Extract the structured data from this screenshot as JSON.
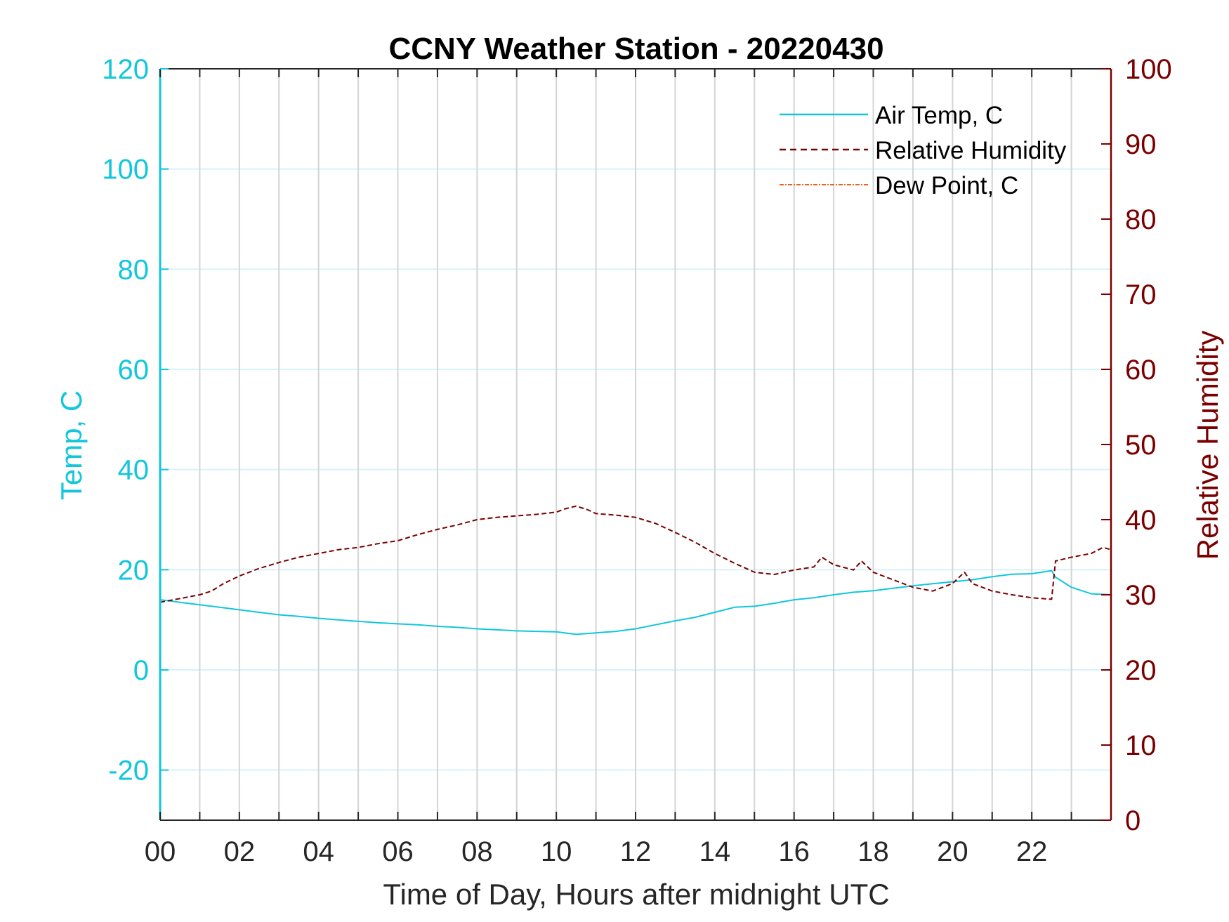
{
  "chart_data": {
    "type": "line",
    "title": "CCNY Weather Station - 20220430",
    "xlabel": "Time of Day, Hours after midnight UTC",
    "ylabel_left": "Temp, C",
    "ylabel_right": "Relative Humidity",
    "xlim": [
      0,
      24
    ],
    "ylim_left": [
      -30,
      120
    ],
    "ylim_right": [
      0,
      100
    ],
    "x_ticks": [
      0,
      2,
      4,
      6,
      8,
      10,
      12,
      14,
      16,
      18,
      20,
      22
    ],
    "x_tick_labels": [
      "00",
      "02",
      "04",
      "06",
      "08",
      "10",
      "12",
      "14",
      "16",
      "18",
      "20",
      "22"
    ],
    "y_left_ticks": [
      -20,
      0,
      20,
      40,
      60,
      80,
      100,
      120
    ],
    "y_left_tick_labels": [
      "-20",
      "0",
      "20",
      "40",
      "60",
      "80",
      "100",
      "120"
    ],
    "y_right_ticks": [
      0,
      10,
      20,
      30,
      40,
      50,
      60,
      70,
      80,
      90,
      100
    ],
    "y_right_tick_labels": [
      "0",
      "10",
      "20",
      "30",
      "40",
      "50",
      "60",
      "70",
      "80",
      "90",
      "100"
    ],
    "grid": true,
    "legend_position": "top-right",
    "colors": {
      "left_axis": "#12c6dc",
      "right_axis": "#7a0000",
      "dew_point": "#e8641c",
      "grid_vertical": "#d4d4d4",
      "grid_horizontal": "#d6f3f7"
    },
    "series": [
      {
        "name": "Air Temp, C",
        "axis": "left",
        "style": "solid",
        "color": "#12c6dc",
        "x": [
          0,
          0.5,
          1,
          1.5,
          2,
          2.5,
          3,
          3.5,
          4,
          4.5,
          5,
          5.5,
          6,
          6.5,
          7,
          7.5,
          8,
          8.5,
          9,
          9.5,
          10,
          10.5,
          11,
          11.5,
          12,
          12.5,
          13,
          13.5,
          14,
          14.5,
          15,
          15.5,
          16,
          16.5,
          17,
          17.5,
          18,
          18.5,
          19,
          19.5,
          20,
          20.5,
          21,
          21.5,
          22,
          22.5,
          22.6,
          23,
          23.5,
          24
        ],
        "values": [
          14,
          13.5,
          13,
          12.5,
          12,
          11.5,
          11,
          10.7,
          10.3,
          10,
          9.7,
          9.4,
          9.2,
          9,
          8.7,
          8.5,
          8.2,
          8,
          7.8,
          7.7,
          7.6,
          7.1,
          7.4,
          7.7,
          8.2,
          9,
          9.8,
          10.5,
          11.5,
          12.5,
          12.7,
          13.3,
          14,
          14.4,
          15,
          15.5,
          15.8,
          16.3,
          16.8,
          17.2,
          17.6,
          18,
          18.6,
          19.1,
          19.2,
          19.8,
          18.5,
          16.5,
          15.2,
          15
        ]
      },
      {
        "name": "Relative Humidity",
        "axis": "right",
        "style": "dashed",
        "color": "#7a0000",
        "x": [
          0,
          0.5,
          1,
          1.3,
          1.6,
          2,
          2.5,
          3,
          3.5,
          4,
          4.5,
          5,
          5.5,
          6,
          6.5,
          7,
          7.5,
          8,
          8.5,
          9,
          9.5,
          10,
          10.2,
          10.5,
          10.8,
          11,
          11.5,
          12,
          12.5,
          13,
          13.5,
          14,
          14.5,
          15,
          15.5,
          16,
          16.5,
          16.7,
          17,
          17.5,
          17.7,
          18,
          18.5,
          19,
          19.5,
          20,
          20.3,
          20.5,
          21,
          21.5,
          22,
          22.5,
          22.6,
          23,
          23.5,
          23.8,
          24
        ],
        "values": [
          29,
          29.5,
          30,
          30.5,
          31.5,
          32.5,
          33.5,
          34.3,
          35,
          35.5,
          36,
          36.3,
          36.8,
          37.2,
          38,
          38.7,
          39.3,
          40,
          40.3,
          40.5,
          40.7,
          41,
          41.4,
          41.8,
          41.3,
          40.8,
          40.6,
          40.3,
          39.5,
          38.3,
          37,
          35.5,
          34.2,
          33,
          32.7,
          33.3,
          33.7,
          35,
          34,
          33.3,
          34.5,
          33,
          32,
          31,
          30.5,
          31.5,
          33,
          31.5,
          30.5,
          30,
          29.6,
          29.4,
          34.5,
          35,
          35.5,
          36.3,
          36
        ]
      },
      {
        "name": "Dew Point, C",
        "axis": "left",
        "style": "dash-dot",
        "color": "#e8641c",
        "x": [],
        "values": []
      }
    ]
  }
}
